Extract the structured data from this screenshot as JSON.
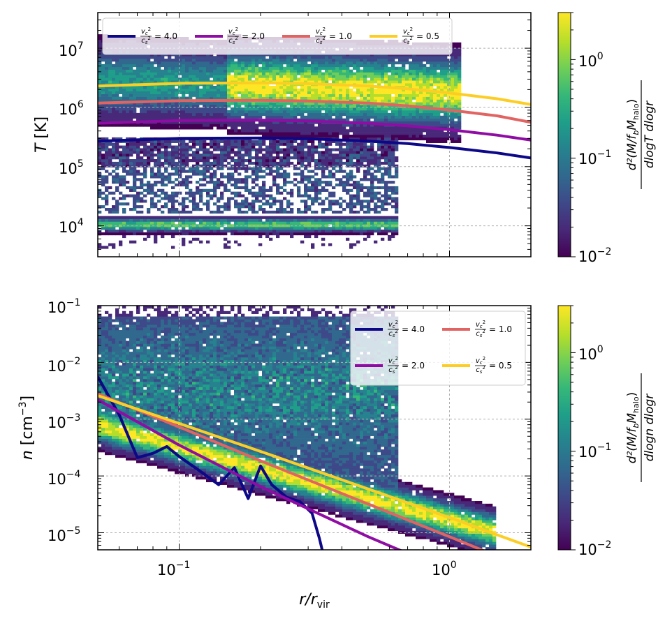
{
  "chart_data": [
    {
      "type": "heatmap",
      "panel": "top",
      "x_scale": "log",
      "y_scale": "log",
      "xlim": [
        0.05,
        2.0
      ],
      "ylim": [
        3000,
        40000000
      ],
      "x_ticks": [
        0.1,
        1.0
      ],
      "x_tick_labels": [
        "10^{-1}",
        "10^{0}"
      ],
      "y_ticks": [
        10000,
        100000,
        1000000,
        10000000
      ],
      "y_tick_labels": [
        "10^{4}",
        "10^{5}",
        "10^{6}",
        "10^{7}"
      ],
      "ylabel": "T [K]",
      "xlabel": "",
      "grid": true,
      "legend_position": "top",
      "colorbar": {
        "scale": "log",
        "range": [
          0.01,
          3.0
        ],
        "ticks": [
          0.01,
          0.1,
          1.0
        ],
        "tick_labels": [
          "10^{-2}",
          "10^{-1}",
          "10^{0}"
        ],
        "label": "d²(M/f_b M_halo) / dlogT dlogr",
        "colormap": "viridis"
      },
      "heatmap_features": [
        {
          "feature": "hot gas band",
          "r_range": [
            0.05,
            1.1
          ],
          "T_range": [
            100000,
            20000000
          ],
          "peak_T": 2000000
        },
        {
          "feature": "cool gas band",
          "r_range": [
            0.05,
            0.65
          ],
          "T_range": [
            8000,
            20000
          ],
          "peak_T": 10000
        },
        {
          "feature": "intermediate scatter",
          "r_range": [
            0.05,
            0.65
          ],
          "T_range": [
            20000,
            200000
          ]
        }
      ],
      "series": [
        {
          "name": "v_c²/c_s² = 4.0",
          "color": "#0d0887",
          "x": [
            0.05,
            0.1,
            0.2,
            0.3,
            0.5,
            0.7,
            1.0,
            1.5,
            2.0
          ],
          "y": [
            270000,
            300000,
            305000,
            295000,
            270000,
            245000,
            210000,
            170000,
            140000
          ]
        },
        {
          "name": "v_c²/c_s² = 2.0",
          "color": "#8f0da4",
          "x": [
            0.05,
            0.1,
            0.2,
            0.3,
            0.5,
            0.7,
            1.0,
            1.5,
            2.0
          ],
          "y": [
            540000,
            600000,
            610000,
            590000,
            540000,
            490000,
            420000,
            340000,
            280000
          ]
        },
        {
          "name": "v_c²/c_s² = 1.0",
          "color": "#e16462",
          "x": [
            0.05,
            0.1,
            0.2,
            0.3,
            0.5,
            0.7,
            1.0,
            1.5,
            2.0
          ],
          "y": [
            1180000,
            1300000,
            1320000,
            1280000,
            1180000,
            1060000,
            900000,
            720000,
            560000
          ]
        },
        {
          "name": "v_c²/c_s² = 0.5",
          "color": "#fcce25",
          "x": [
            0.05,
            0.1,
            0.2,
            0.3,
            0.5,
            0.7,
            1.0,
            1.5,
            2.0
          ],
          "y": [
            2300000,
            2550000,
            2600000,
            2520000,
            2300000,
            2060000,
            1750000,
            1400000,
            1120000
          ]
        }
      ]
    },
    {
      "type": "heatmap",
      "panel": "bottom",
      "x_scale": "log",
      "y_scale": "log",
      "xlim": [
        0.05,
        2.0
      ],
      "ylim": [
        5e-06,
        0.1
      ],
      "x_ticks": [
        0.1,
        1.0
      ],
      "x_tick_labels": [
        "10^{-1}",
        "10^{0}"
      ],
      "y_ticks": [
        1e-05,
        0.0001,
        0.001,
        0.01,
        0.1
      ],
      "y_tick_labels": [
        "10^{-5}",
        "10^{-4}",
        "10^{-3}",
        "10^{-2}",
        "10^{-1}"
      ],
      "ylabel": "n [cm^-3]",
      "xlabel": "r/r_vir",
      "grid": true,
      "legend_position": "top-right",
      "colorbar": {
        "scale": "log",
        "range": [
          0.01,
          3.0
        ],
        "ticks": [
          0.01,
          0.1,
          1.0
        ],
        "tick_labels": [
          "10^{-2}",
          "10^{-1}",
          "10^{0}"
        ],
        "label": "d²(M/f_b M_halo) / dlogn dlogr",
        "colormap": "viridis"
      },
      "heatmap_features": [
        {
          "feature": "diffuse hot gas ridge",
          "r_range": [
            0.05,
            1.5
          ],
          "n_from": 0.0008,
          "n_to": 1e-05
        },
        {
          "feature": "dense clumps",
          "r_range": [
            0.05,
            0.65
          ],
          "n_range": [
            0.0002,
            0.1
          ]
        }
      ],
      "series": [
        {
          "name": "v_c²/c_s² = 4.0",
          "color": "#0d0887",
          "x": [
            0.05,
            0.06,
            0.07,
            0.08,
            0.09,
            0.1,
            0.12,
            0.14,
            0.16,
            0.18,
            0.2,
            0.22,
            0.25,
            0.28,
            0.31,
            0.33,
            0.35
          ],
          "y": [
            0.0056,
            0.0012,
            0.00021,
            0.00025,
            0.00033,
            0.00022,
            0.00012,
            7e-05,
            0.00014,
            4e-05,
            0.00015,
            7e-05,
            4.2e-05,
            3.5e-05,
            2.2e-05,
            8e-06,
            2.5e-06
          ]
        },
        {
          "name": "v_c²/c_s² = 2.0",
          "color": "#8f0da4",
          "x": [
            0.05,
            0.1,
            0.2,
            0.5,
            1.0,
            2.0
          ],
          "y": [
            0.0022,
            0.00035,
            6.5e-05,
            8.5e-06,
            2.1e-06,
            5.8e-07
          ]
        },
        {
          "name": "v_c²/c_s² = 1.0",
          "color": "#e16462",
          "x": [
            0.05,
            0.1,
            0.2,
            0.5,
            1.0,
            2.0
          ],
          "y": [
            0.0028,
            0.00073,
            0.000185,
            3.2e-05,
            8.5e-06,
            2.2e-06
          ]
        },
        {
          "name": "v_c²/c_s² = 0.5",
          "color": "#fcce25",
          "x": [
            0.05,
            0.1,
            0.2,
            0.5,
            1.0,
            2.0
          ],
          "y": [
            0.0026,
            0.00084,
            0.00027,
            5.9e-05,
            1.85e-05,
            5.6e-06
          ]
        }
      ]
    }
  ],
  "legend_top": [
    {
      "label": "= 4.0",
      "color": "#0d0887"
    },
    {
      "label": "= 2.0",
      "color": "#8f0da4"
    },
    {
      "label": "= 1.0",
      "color": "#e16462"
    },
    {
      "label": "= 0.5",
      "color": "#fcce25"
    }
  ],
  "legend_bottom": [
    {
      "label": "= 4.0",
      "color": "#0d0887"
    },
    {
      "label": "= 1.0",
      "color": "#e16462"
    },
    {
      "label": "= 2.0",
      "color": "#8f0da4"
    },
    {
      "label": "= 0.5",
      "color": "#fcce25"
    }
  ],
  "legend_symbol": {
    "num_base": "v",
    "num_sub": "c",
    "den_base": "c",
    "den_sub": "s",
    "power": "2"
  },
  "labels": {
    "top_y_base": "T",
    "top_y_unit": "[K]",
    "bottom_y_base": "n",
    "bottom_y_unit": "[cm",
    "bottom_y_unit_exp": "−3",
    "bottom_y_unit_close": "]",
    "x_base": "r/r",
    "x_sub": "vir",
    "cbar_top_num": "d²(M/f",
    "cbar_num_b": "b",
    "cbar_num_m": "M",
    "cbar_num_halo": "halo",
    "cbar_num_close": ")",
    "cbar_top_den": "dlogT dlogr",
    "cbar_bot_den": "dlogn dlogr"
  },
  "tick_labels": {
    "x_base": "10",
    "x_exp": [
      "−1",
      "0"
    ],
    "top_y_exp": [
      "4",
      "5",
      "6",
      "7"
    ],
    "bot_y_exp": [
      "−5",
      "−4",
      "−3",
      "−2",
      "−1"
    ],
    "cbar_exp": [
      "−2",
      "−1",
      "0"
    ]
  },
  "colors": {
    "grid": "#b0b0b0",
    "viridis": [
      "#440154",
      "#482878",
      "#3e4989",
      "#31688e",
      "#26828e",
      "#1f9e89",
      "#35b779",
      "#6ece58",
      "#b5de2b",
      "#fde725"
    ]
  }
}
